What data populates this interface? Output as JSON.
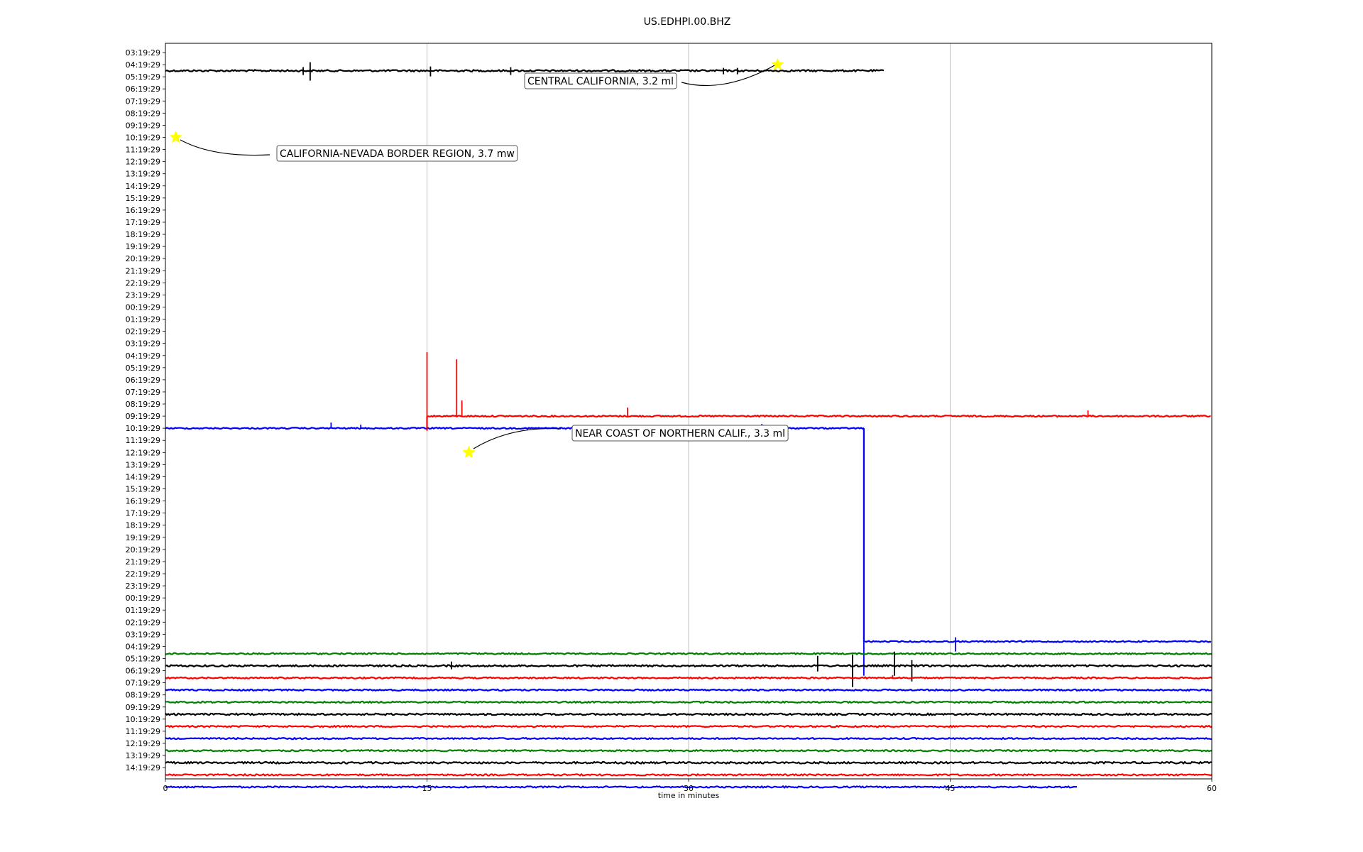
{
  "chart_data": {
    "type": "line",
    "title": "US.EDHPI.00.BHZ",
    "xlabel": "time in minutes",
    "ylabel": "",
    "xlim": [
      0,
      60
    ],
    "xticks": [
      0,
      15,
      30,
      45,
      60
    ],
    "grid": "vertical",
    "y_tick_labels": [
      "03:19:29",
      "04:19:29",
      "05:19:29",
      "06:19:29",
      "07:19:29",
      "08:19:29",
      "09:19:29",
      "10:19:29",
      "11:19:29",
      "12:19:29",
      "13:19:29",
      "14:19:29",
      "15:19:29",
      "16:19:29",
      "17:19:29",
      "18:19:29",
      "19:19:29",
      "20:19:29",
      "21:19:29",
      "22:19:29",
      "23:19:29",
      "00:19:29",
      "01:19:29",
      "02:19:29",
      "03:19:29",
      "04:19:29",
      "05:19:29",
      "06:19:29",
      "07:19:29",
      "08:19:29",
      "09:19:29",
      "10:19:29",
      "11:19:29",
      "12:19:29",
      "13:19:29",
      "14:19:29",
      "15:19:29",
      "16:19:29",
      "17:19:29",
      "18:19:29",
      "19:19:29",
      "20:19:29",
      "21:19:29",
      "22:19:29",
      "23:19:29",
      "00:19:29",
      "01:19:29",
      "02:19:29",
      "03:19:29",
      "04:19:29",
      "05:19:29",
      "06:19:29",
      "07:19:29",
      "08:19:29",
      "09:19:29",
      "10:19:29",
      "11:19:29",
      "12:19:29",
      "13:19:29",
      "14:19:29"
    ],
    "colors": {
      "black": "#000000",
      "red": "#ff0000",
      "blue": "#0000ff",
      "green": "#008000",
      "star": "#ffff00"
    },
    "traces": [
      {
        "row": 1.5,
        "color": "black",
        "x_start": 0,
        "x_end": 41.2,
        "noise": 1.2,
        "spikes": [
          [
            8.3,
            -12,
            14
          ],
          [
            7.9,
            -5,
            6
          ],
          [
            15.2,
            -6,
            8
          ],
          [
            19.8,
            -5,
            6
          ],
          [
            32.0,
            -4,
            5
          ],
          [
            32.8,
            -4,
            5
          ]
        ]
      },
      {
        "row": 30.0,
        "color": "red",
        "x_start": 15.0,
        "x_end": 60,
        "noise": 1.0,
        "spikes": [
          [
            15.0,
            -90,
            0
          ],
          [
            16.7,
            -80,
            0
          ],
          [
            17.0,
            -22,
            0
          ],
          [
            26.5,
            -12,
            0
          ],
          [
            52.9,
            -8,
            0
          ]
        ]
      },
      {
        "row": 31.0,
        "color": "blue",
        "x_start": 0,
        "x_end": 40.1,
        "noise": 0.9,
        "spikes": [
          [
            9.5,
            -8,
            0
          ],
          [
            11.2,
            -5,
            0
          ],
          [
            34.2,
            -6,
            0
          ]
        ]
      },
      {
        "row": 48.6,
        "color": "blue",
        "x_start": 40.1,
        "x_end": 60,
        "noise": 0.9,
        "spikes": [
          [
            40.05,
            -14,
            48
          ],
          [
            45.3,
            -6,
            14
          ]
        ]
      },
      {
        "row": 49.6,
        "color": "green",
        "x_start": 0,
        "x_end": 60,
        "noise": 1.0,
        "spikes": []
      },
      {
        "row": 50.6,
        "color": "black",
        "x_start": 0,
        "x_end": 60,
        "noise": 1.2,
        "spikes": [
          [
            16.4,
            -6,
            5
          ],
          [
            37.4,
            -14,
            8
          ],
          [
            39.4,
            -16,
            30
          ],
          [
            41.8,
            -20,
            14
          ],
          [
            42.8,
            -8,
            22
          ]
        ]
      },
      {
        "row": 51.6,
        "color": "red",
        "x_start": 0,
        "x_end": 60,
        "noise": 1.0,
        "spikes": [
          [
            41.7,
            -4,
            0
          ]
        ]
      },
      {
        "row": 52.6,
        "color": "blue",
        "x_start": 0,
        "x_end": 60,
        "noise": 1.0,
        "spikes": []
      },
      {
        "row": 53.6,
        "color": "green",
        "x_start": 0,
        "x_end": 60,
        "noise": 1.0,
        "spikes": []
      },
      {
        "row": 54.6,
        "color": "black",
        "x_start": 0,
        "x_end": 60,
        "noise": 1.2,
        "spikes": []
      },
      {
        "row": 55.6,
        "color": "red",
        "x_start": 0,
        "x_end": 60,
        "noise": 1.0,
        "spikes": []
      },
      {
        "row": 56.6,
        "color": "blue",
        "x_start": 0,
        "x_end": 60,
        "noise": 1.0,
        "spikes": []
      },
      {
        "row": 57.6,
        "color": "green",
        "x_start": 0,
        "x_end": 60,
        "noise": 1.0,
        "spikes": []
      },
      {
        "row": 58.6,
        "color": "black",
        "x_start": 0,
        "x_end": 60,
        "noise": 1.2,
        "spikes": []
      },
      {
        "row": 59.6,
        "color": "red",
        "x_start": 0,
        "x_end": 60,
        "noise": 1.0,
        "spikes": []
      },
      {
        "row": 60.6,
        "color": "blue",
        "x_start": 0,
        "x_end": 52.3,
        "noise": 1.0,
        "spikes": []
      }
    ],
    "annotations": [
      {
        "text": "CENTRAL CALIFORNIA, 3.2 ml",
        "star_x": 35.1,
        "star_row": 1.0
      },
      {
        "text": "CALIFORNIA-NEVADA BORDER REGION, 3.7 mw",
        "star_x": 0.6,
        "star_row": 7.0
      },
      {
        "text": "NEAR COAST OF NORTHERN CALIF., 3.3 ml",
        "star_x": 17.4,
        "star_row": 33.0
      }
    ]
  }
}
